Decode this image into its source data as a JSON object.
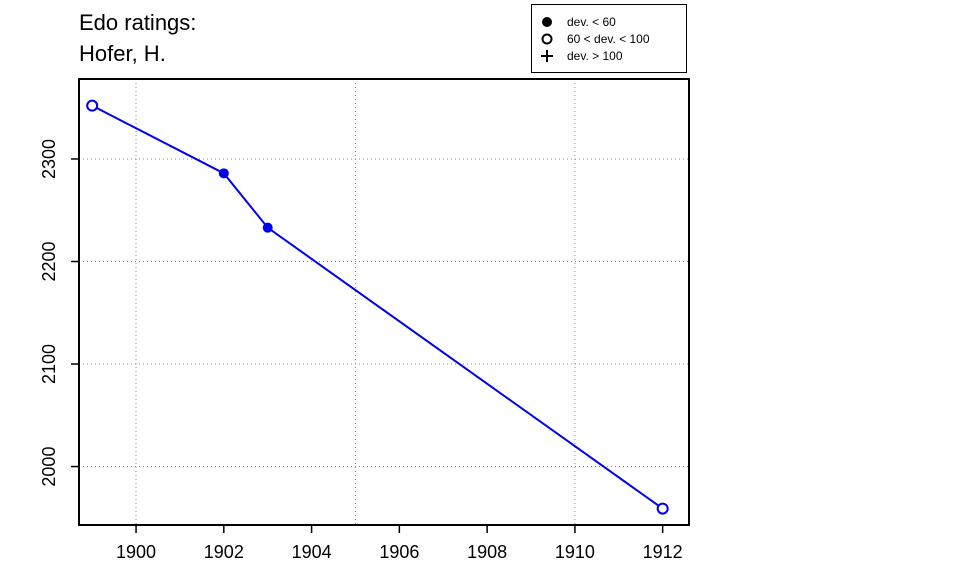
{
  "chart_data": {
    "type": "line",
    "title_lines": [
      "Edo ratings:",
      "Hofer, H."
    ],
    "xlabel": "",
    "ylabel": "",
    "xlim": [
      1898.7,
      1912.6
    ],
    "ylim": [
      1943,
      2378
    ],
    "x_ticks": [
      1900,
      1902,
      1904,
      1906,
      1908,
      1910,
      1912
    ],
    "y_ticks": [
      2000,
      2100,
      2200,
      2300
    ],
    "grid": true,
    "legend_position": "top-right",
    "legend": [
      {
        "symbol": "filled-circle",
        "label": "dev. < 60"
      },
      {
        "symbol": "open-circle",
        "label": "60 < dev. < 100"
      },
      {
        "symbol": "plus",
        "label": "dev. > 100"
      }
    ],
    "series": [
      {
        "color": "#0000ee",
        "points": [
          {
            "x": 1899,
            "y": 2352,
            "marker": "open-circle"
          },
          {
            "x": 1902,
            "y": 2286,
            "marker": "filled-circle"
          },
          {
            "x": 1903,
            "y": 2233,
            "marker": "filled-circle"
          },
          {
            "x": 1912,
            "y": 1959,
            "marker": "open-circle"
          }
        ]
      }
    ]
  }
}
